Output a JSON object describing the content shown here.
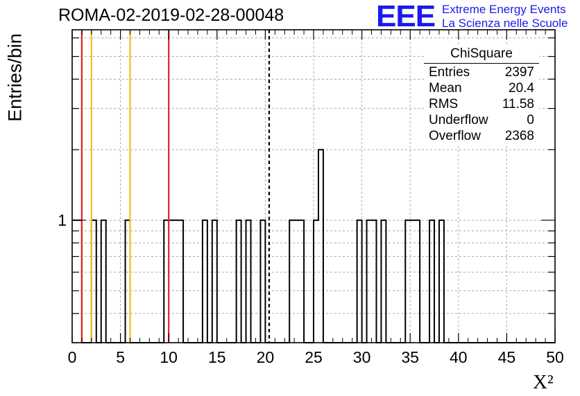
{
  "title": "ROMA-02-2019-02-28-00048",
  "logo": {
    "mark": "EEE",
    "line1": "Extreme Energy Events",
    "line2": "La Scienza nelle Scuole"
  },
  "stats": {
    "name": "ChiSquare",
    "rows": [
      {
        "key": "Entries",
        "value": "2397"
      },
      {
        "key": "Mean",
        "value": "20.4"
      },
      {
        "key": "RMS",
        "value": "11.58"
      },
      {
        "key": "Underflow",
        "value": "0"
      },
      {
        "key": "Overflow",
        "value": "2368"
      }
    ]
  },
  "colors": {
    "red": "#dd2222",
    "yellow": "#f0c020",
    "logo": "#1a1aee"
  },
  "chart_data": {
    "type": "histogram",
    "xlabel": "X²",
    "ylabel": "Entries/bin",
    "xlim": [
      0,
      50
    ],
    "ylog": true,
    "ylim": [
      0.3,
      6.5
    ],
    "xticks": [
      0,
      5,
      10,
      15,
      20,
      25,
      30,
      35,
      40,
      45,
      50
    ],
    "ytick_labels": [
      {
        "value": 1,
        "label": "1"
      }
    ],
    "bin_width": 0.5,
    "bins": [
      {
        "x0": 0.0,
        "count": 1
      },
      {
        "x0": 0.5,
        "count": 1
      },
      {
        "x0": 2.0,
        "count": 1
      },
      {
        "x0": 3.0,
        "count": 1
      },
      {
        "x0": 5.5,
        "count": 1
      },
      {
        "x0": 9.5,
        "count": 1
      },
      {
        "x0": 10.0,
        "count": 1
      },
      {
        "x0": 10.5,
        "count": 1
      },
      {
        "x0": 11.0,
        "count": 1
      },
      {
        "x0": 13.5,
        "count": 1
      },
      {
        "x0": 14.5,
        "count": 1
      },
      {
        "x0": 17.0,
        "count": 1
      },
      {
        "x0": 18.0,
        "count": 1
      },
      {
        "x0": 19.5,
        "count": 1
      },
      {
        "x0": 22.5,
        "count": 1
      },
      {
        "x0": 23.0,
        "count": 1
      },
      {
        "x0": 23.5,
        "count": 1
      },
      {
        "x0": 25.0,
        "count": 1
      },
      {
        "x0": 25.5,
        "count": 2
      },
      {
        "x0": 29.5,
        "count": 1
      },
      {
        "x0": 30.5,
        "count": 1
      },
      {
        "x0": 31.0,
        "count": 1
      },
      {
        "x0": 32.0,
        "count": 1
      },
      {
        "x0": 34.5,
        "count": 1
      },
      {
        "x0": 35.0,
        "count": 1
      },
      {
        "x0": 35.5,
        "count": 1
      },
      {
        "x0": 37.0,
        "count": 1
      },
      {
        "x0": 38.0,
        "count": 1
      }
    ],
    "vlines": [
      {
        "x": 1.0,
        "color": "red",
        "style": "solid"
      },
      {
        "x": 2.0,
        "color": "yellow",
        "style": "solid"
      },
      {
        "x": 6.0,
        "color": "yellow",
        "style": "solid"
      },
      {
        "x": 10.0,
        "color": "red",
        "style": "solid"
      },
      {
        "x": 20.4,
        "color": "black",
        "style": "dashed"
      }
    ],
    "grid": true
  }
}
